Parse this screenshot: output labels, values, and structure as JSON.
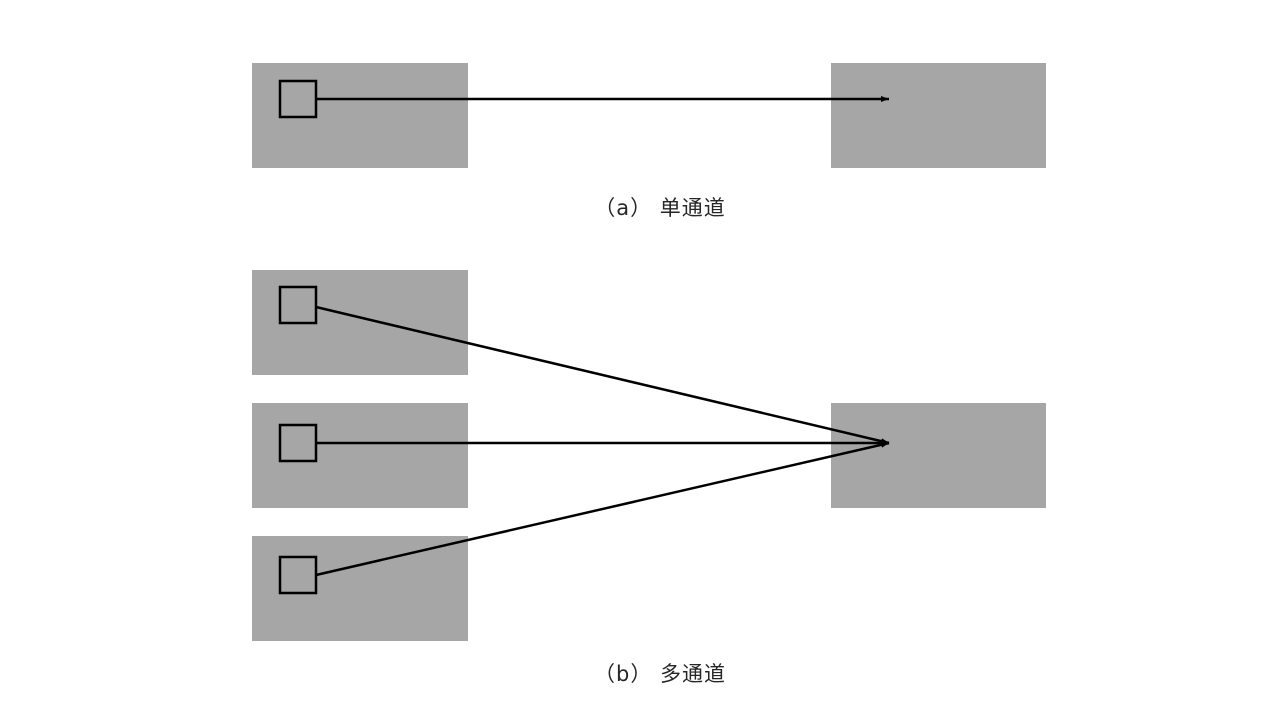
{
  "colors": {
    "background": "#ffffff",
    "block_fill": "#a6a6a6",
    "port_stroke": "#000000",
    "arrow_stroke": "#000000",
    "caption_text": "#262626"
  },
  "panels": [
    {
      "id": "a",
      "caption": "（a） 单通道",
      "source_count": 1,
      "target_count": 1
    },
    {
      "id": "b",
      "caption": "（b） 多通道",
      "source_count": 3,
      "target_count": 1
    }
  ]
}
